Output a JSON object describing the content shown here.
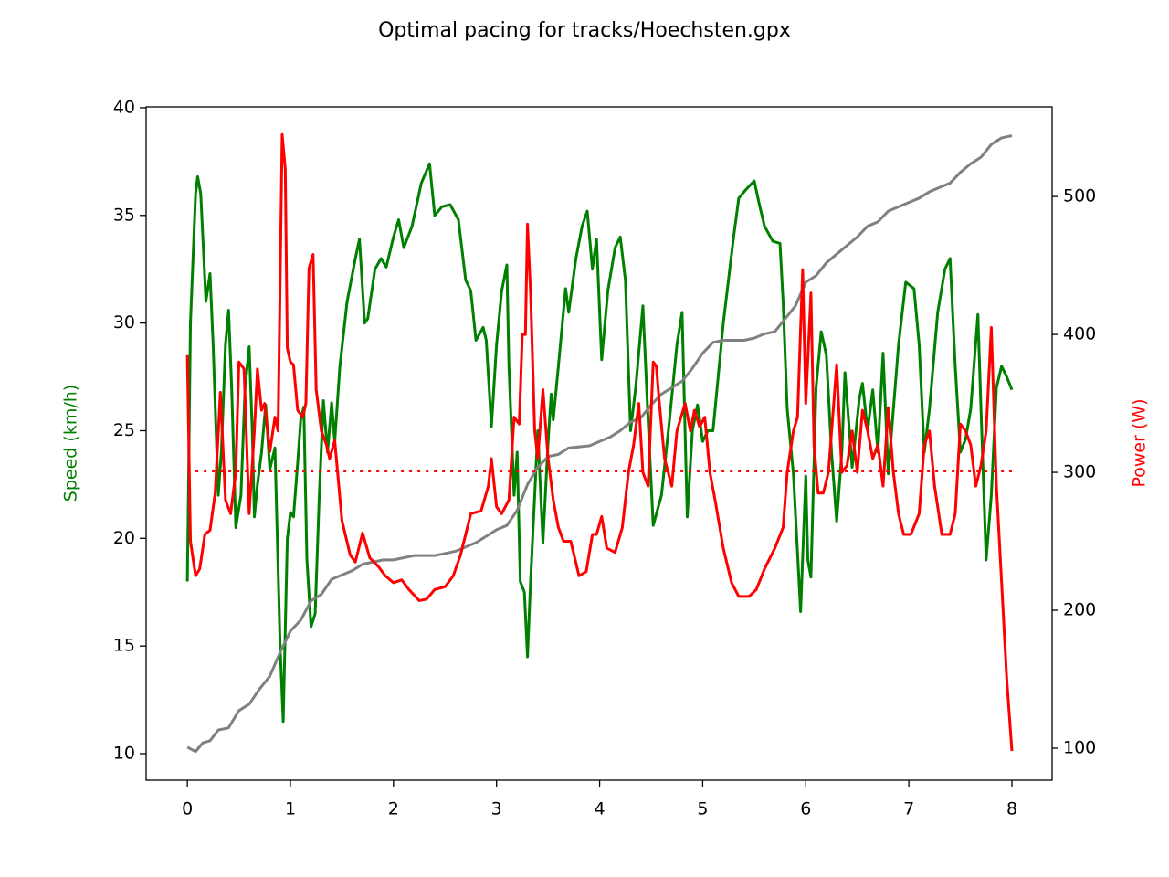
{
  "chart_data": {
    "type": "line",
    "title": "Optimal pacing for tracks/Hoechsten.gpx",
    "ylabel": "Speed (km/h)",
    "ylabel_color": "green",
    "y2label": "Power (W)",
    "y2label_color": "red",
    "xlim": [
      -0.4,
      8.39
    ],
    "xticks": [
      0,
      1,
      2,
      3,
      4,
      5,
      6,
      7,
      8
    ],
    "ylim": [
      8.77,
      40.04
    ],
    "yticks": [
      10,
      15,
      20,
      25,
      30,
      35,
      40
    ],
    "y2lim": [
      76.8,
      565
    ],
    "y2ticks": [
      100,
      200,
      300,
      400,
      500
    ],
    "grid": false,
    "series": [
      {
        "color": "green",
        "style": "solid",
        "x": [
          0,
          0.03,
          0.08,
          0.1,
          0.13,
          0.17,
          0.18,
          0.22,
          0.25,
          0.3,
          0.33,
          0.37,
          0.4,
          0.43,
          0.47,
          0.52,
          0.56,
          0.6,
          0.63,
          0.65,
          0.68,
          0.72,
          0.76,
          0.8,
          0.85,
          0.9,
          0.93,
          0.97,
          1.0,
          1.03,
          1.07,
          1.1,
          1.13,
          1.16,
          1.2,
          1.24,
          1.28,
          1.32,
          1.36,
          1.4,
          1.43,
          1.48,
          1.55,
          1.63,
          1.67,
          1.72,
          1.75,
          1.82,
          1.88,
          1.93,
          2.0,
          2.05,
          2.1,
          2.18,
          2.27,
          2.35,
          2.4,
          2.47,
          2.55,
          2.63,
          2.7,
          2.75,
          2.8,
          2.87,
          2.9,
          2.95,
          3.0,
          3.05,
          3.1,
          3.12,
          3.17,
          3.2,
          3.23,
          3.27,
          3.3,
          3.33,
          3.37,
          3.4,
          3.45,
          3.5,
          3.53,
          3.55,
          3.6,
          3.67,
          3.7,
          3.77,
          3.83,
          3.88,
          3.93,
          3.97,
          4.02,
          4.08,
          4.15,
          4.2,
          4.25,
          4.3,
          4.35,
          4.42,
          4.47,
          4.52,
          4.6,
          4.68,
          4.75,
          4.8,
          4.85,
          4.9,
          4.95,
          5.0,
          5.05,
          5.1,
          5.2,
          5.3,
          5.35,
          5.42,
          5.5,
          5.55,
          5.6,
          5.68,
          5.75,
          5.78,
          5.82,
          5.88,
          5.95,
          6.0,
          6.02,
          6.05,
          6.1,
          6.15,
          6.2,
          6.25,
          6.3,
          6.35,
          6.38,
          6.45,
          6.52,
          6.55,
          6.6,
          6.65,
          6.7,
          6.75,
          6.8,
          6.9,
          6.97,
          7.05,
          7.1,
          7.15,
          7.2,
          7.28,
          7.35,
          7.4,
          7.45,
          7.5,
          7.55,
          7.6,
          7.67,
          7.7,
          7.75,
          7.8,
          7.85,
          7.9,
          7.95,
          8.0
        ],
        "values": [
          18,
          30,
          36,
          36.8,
          36,
          32,
          31,
          32.3,
          29,
          22,
          24,
          29,
          30.6,
          27,
          20.5,
          22,
          27,
          28.9,
          25,
          21,
          22.5,
          24,
          26.2,
          23.2,
          24.2,
          15,
          11.5,
          20,
          21.2,
          21,
          23.5,
          25.5,
          26.1,
          19,
          15.9,
          16.5,
          22,
          26.4,
          24,
          26.3,
          24.5,
          28,
          31,
          33,
          33.9,
          30,
          30.2,
          32.5,
          33,
          32.6,
          34,
          34.8,
          33.5,
          34.5,
          36.5,
          37.4,
          35,
          35.4,
          35.5,
          34.8,
          32,
          31.5,
          29.2,
          29.8,
          29.2,
          25.2,
          29,
          31.5,
          32.7,
          28,
          22,
          24,
          18,
          17.5,
          14.5,
          18,
          22,
          25,
          19.8,
          24.5,
          26.7,
          25.5,
          28,
          31.6,
          30.5,
          33,
          34.5,
          35.2,
          32.5,
          33.9,
          28.3,
          31.5,
          33.5,
          34,
          32,
          25,
          27,
          30.8,
          25.5,
          20.6,
          22,
          25.6,
          29,
          30.5,
          21,
          25,
          26.2,
          24.5,
          25,
          25,
          30,
          34,
          35.8,
          36.2,
          36.6,
          35.5,
          34.5,
          33.8,
          33.7,
          31,
          26,
          23,
          16.6,
          22.9,
          19,
          18.2,
          27,
          29.6,
          28.5,
          24,
          20.8,
          24,
          27.7,
          23.3,
          26.5,
          27.2,
          25,
          26.9,
          24,
          28.6,
          23,
          29,
          31.9,
          31.6,
          29,
          24,
          26,
          30.5,
          32.5,
          33,
          28,
          24,
          24.6,
          26,
          30.4,
          26,
          19,
          22,
          27,
          28,
          27.5,
          26.9
        ]
      },
      {
        "color": "gray",
        "style": "solid",
        "x": [
          0,
          0.08,
          0.15,
          0.22,
          0.3,
          0.4,
          0.5,
          0.6,
          0.7,
          0.8,
          0.9,
          1.0,
          1.1,
          1.2,
          1.3,
          1.4,
          1.5,
          1.6,
          1.7,
          1.8,
          1.9,
          2.0,
          2.1,
          2.2,
          2.4,
          2.6,
          2.8,
          2.9,
          3.0,
          3.1,
          3.2,
          3.3,
          3.4,
          3.5,
          3.6,
          3.7,
          3.9,
          4.0,
          4.1,
          4.2,
          4.3,
          4.4,
          4.5,
          4.6,
          4.7,
          4.8,
          4.9,
          5.0,
          5.1,
          5.2,
          5.4,
          5.5,
          5.6,
          5.7,
          5.8,
          5.9,
          6.0,
          6.1,
          6.2,
          6.3,
          6.4,
          6.5,
          6.6,
          6.7,
          6.8,
          6.9,
          7.0,
          7.1,
          7.2,
          7.3,
          7.4,
          7.5,
          7.6,
          7.7,
          7.8,
          7.9,
          8.0
        ],
        "values": [
          10.3,
          10.1,
          10.5,
          10.6,
          11.1,
          11.2,
          12,
          12.3,
          13,
          13.6,
          14.7,
          15.7,
          16.2,
          17.1,
          17.4,
          18.1,
          18.3,
          18.5,
          18.8,
          18.9,
          19.0,
          19.0,
          19.1,
          19.2,
          19.2,
          19.4,
          19.8,
          20.1,
          20.4,
          20.6,
          21.3,
          22.5,
          23.3,
          23.8,
          23.9,
          24.2,
          24.3,
          24.5,
          24.7,
          25.0,
          25.4,
          25.6,
          26.2,
          26.7,
          27.0,
          27.3,
          27.9,
          28.6,
          29.1,
          29.2,
          29.2,
          29.3,
          29.5,
          29.6,
          30.2,
          30.8,
          31.9,
          32.2,
          32.8,
          33.2,
          33.6,
          34.0,
          34.5,
          34.7,
          35.2,
          35.4,
          35.6,
          35.8,
          36.1,
          36.3,
          36.5,
          37.0,
          37.4,
          37.7,
          38.3,
          38.6,
          38.7
        ]
      },
      {
        "color": "red",
        "style": "solid",
        "axis": "y2",
        "x": [
          0,
          0.03,
          0.08,
          0.12,
          0.17,
          0.22,
          0.27,
          0.32,
          0.37,
          0.42,
          0.47,
          0.5,
          0.55,
          0.6,
          0.65,
          0.68,
          0.72,
          0.75,
          0.8,
          0.85,
          0.88,
          0.92,
          0.95,
          0.97,
          1.0,
          1.03,
          1.07,
          1.12,
          1.15,
          1.18,
          1.22,
          1.25,
          1.3,
          1.35,
          1.38,
          1.43,
          1.5,
          1.58,
          1.63,
          1.7,
          1.77,
          1.85,
          1.92,
          2.0,
          2.08,
          2.15,
          2.25,
          2.32,
          2.4,
          2.5,
          2.58,
          2.65,
          2.75,
          2.85,
          2.92,
          2.95,
          3.0,
          3.05,
          3.12,
          3.17,
          3.22,
          3.25,
          3.28,
          3.3,
          3.33,
          3.37,
          3.4,
          3.45,
          3.5,
          3.55,
          3.6,
          3.65,
          3.72,
          3.8,
          3.87,
          3.93,
          3.97,
          4.02,
          4.07,
          4.15,
          4.22,
          4.28,
          4.33,
          4.38,
          4.42,
          4.47,
          4.52,
          4.55,
          4.58,
          4.63,
          4.7,
          4.75,
          4.83,
          4.88,
          4.92,
          4.97,
          5.02,
          5.07,
          5.12,
          5.2,
          5.28,
          5.35,
          5.45,
          5.52,
          5.6,
          5.7,
          5.78,
          5.82,
          5.88,
          5.92,
          5.97,
          6.0,
          6.05,
          6.08,
          6.12,
          6.17,
          6.22,
          6.3,
          6.35,
          6.4,
          6.45,
          6.5,
          6.55,
          6.6,
          6.65,
          6.7,
          6.75,
          6.8,
          6.85,
          6.9,
          6.95,
          7.02,
          7.1,
          7.15,
          7.2,
          7.25,
          7.32,
          7.4,
          7.45,
          7.5,
          7.55,
          7.6,
          7.65,
          7.7,
          7.75,
          7.8,
          7.85,
          7.9,
          7.95,
          8.0
        ],
        "values": [
          385,
          250,
          225,
          230,
          255,
          258,
          285,
          358,
          280,
          270,
          300,
          380,
          375,
          270,
          330,
          375,
          345,
          350,
          315,
          340,
          330,
          545,
          520,
          390,
          380,
          378,
          345,
          340,
          350,
          448,
          458,
          360,
          330,
          320,
          310,
          323,
          265,
          240,
          235,
          256,
          238,
          232,
          225,
          220,
          222,
          215,
          207,
          208,
          215,
          217,
          225,
          240,
          270,
          272,
          290,
          310,
          275,
          270,
          280,
          340,
          335,
          400,
          400,
          480,
          430,
          330,
          310,
          360,
          310,
          280,
          260,
          250,
          250,
          225,
          228,
          255,
          255,
          268,
          245,
          242,
          260,
          300,
          320,
          350,
          300,
          290,
          380,
          377,
          350,
          310,
          290,
          330,
          350,
          330,
          345,
          333,
          340,
          300,
          280,
          245,
          220,
          210,
          210,
          215,
          230,
          245,
          260,
          300,
          330,
          340,
          447,
          350,
          430,
          320,
          285,
          285,
          300,
          378,
          300,
          305,
          330,
          300,
          345,
          330,
          310,
          320,
          290,
          347,
          300,
          270,
          255,
          255,
          270,
          320,
          330,
          290,
          255,
          255,
          270,
          335,
          330,
          320,
          290,
          305,
          330,
          405,
          290,
          220,
          150,
          98
        ]
      },
      {
        "color": "red",
        "style": "dotted",
        "axis": "y2",
        "x": [
          0,
          8
        ],
        "values": [
          301,
          301
        ]
      }
    ]
  }
}
